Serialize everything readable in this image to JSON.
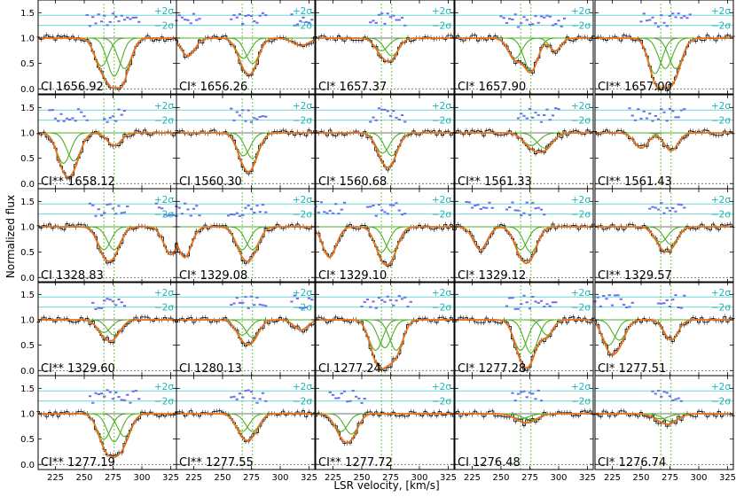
{
  "chart_data": {
    "type": "line",
    "xlabel": "LSR velocity, [km/s]",
    "ylabel": "Normalized flux",
    "xlim": [
      210,
      330
    ],
    "ylim": [
      -0.1,
      1.75
    ],
    "xticks": [
      225,
      250,
      275,
      300,
      325
    ],
    "xtick_labels": [
      "225",
      "250",
      "275",
      "300",
      "325"
    ],
    "yticks": [
      0.0,
      0.5,
      1.0,
      1.5
    ],
    "ytick_labels": [
      "0.0",
      "0.5",
      "1.0",
      "1.5"
    ],
    "residual_band_labels": [
      "+2σ",
      "−2σ"
    ],
    "component_velocities": [
      267,
      276
    ],
    "grid_rows": 5,
    "grid_cols": 5,
    "series_legend": "none",
    "colors": {
      "data": "#000000",
      "total_fit": "#e8701a",
      "components": "#4bb023",
      "residuals": "#6a6ef0",
      "sigma_band": "#6fd8d8",
      "component_marker": "#4bb023",
      "continuum": "#444444"
    },
    "panels": [
      {
        "label": "CI 1656.92",
        "lines": [
          {
            "v": 265,
            "d": 0.55,
            "w": 6
          },
          {
            "v": 276,
            "d": 0.75,
            "w": 6
          },
          {
            "v": 285,
            "d": 0.6,
            "w": 6
          }
        ]
      },
      {
        "label": "CI* 1656.26",
        "lines": [
          {
            "v": 220,
            "d": 0.35,
            "w": 6
          },
          {
            "v": 268,
            "d": 0.4,
            "w": 6
          },
          {
            "v": 276,
            "d": 0.5,
            "w": 6
          },
          {
            "v": 318,
            "d": 0.15,
            "w": 7
          }
        ]
      },
      {
        "label": "CI* 1657.37",
        "lines": [
          {
            "v": 267,
            "d": 0.25,
            "w": 6
          },
          {
            "v": 276,
            "d": 0.35,
            "w": 6
          }
        ]
      },
      {
        "label": "CI* 1657.90",
        "lines": [
          {
            "v": 262,
            "d": 0.4,
            "w": 6
          },
          {
            "v": 276,
            "d": 0.65,
            "w": 6
          },
          {
            "v": 297,
            "d": 0.25,
            "w": 5
          }
        ]
      },
      {
        "label": "CI** 1657.00",
        "lines": [
          {
            "v": 262,
            "d": 0.7,
            "w": 6
          },
          {
            "v": 271,
            "d": 0.6,
            "w": 6
          },
          {
            "v": 280,
            "d": 0.6,
            "w": 6
          }
        ]
      },
      {
        "label": "CI** 1658.12",
        "lines": [
          {
            "v": 232,
            "d": 0.6,
            "w": 6
          },
          {
            "v": 241,
            "d": 0.55,
            "w": 6
          },
          {
            "v": 276,
            "d": 0.25,
            "w": 6
          }
        ]
      },
      {
        "label": "CI 1560.30",
        "lines": [
          {
            "v": 268,
            "d": 0.45,
            "w": 6
          },
          {
            "v": 276,
            "d": 0.5,
            "w": 6
          }
        ]
      },
      {
        "label": "CI* 1560.68",
        "lines": [
          {
            "v": 268,
            "d": 0.4,
            "w": 6
          },
          {
            "v": 276,
            "d": 0.45,
            "w": 6
          }
        ]
      },
      {
        "label": "CI** 1561.33",
        "lines": [
          {
            "v": 276,
            "d": 0.25,
            "w": 7
          },
          {
            "v": 288,
            "d": 0.3,
            "w": 7
          }
        ]
      },
      {
        "label": "CI** 1561.43",
        "lines": [
          {
            "v": 250,
            "d": 0.3,
            "w": 6
          },
          {
            "v": 276,
            "d": 0.35,
            "w": 6
          }
        ]
      },
      {
        "label": "CI 1328.83",
        "lines": [
          {
            "v": 267,
            "d": 0.45,
            "w": 6
          },
          {
            "v": 276,
            "d": 0.45,
            "w": 6
          },
          {
            "v": 325,
            "d": 0.55,
            "w": 6
          }
        ]
      },
      {
        "label": "CI* 1329.08",
        "lines": [
          {
            "v": 217,
            "d": 0.6,
            "w": 6
          },
          {
            "v": 267,
            "d": 0.45,
            "w": 6
          },
          {
            "v": 276,
            "d": 0.45,
            "w": 6
          }
        ]
      },
      {
        "label": "CI* 1329.10",
        "lines": [
          {
            "v": 222,
            "d": 0.6,
            "w": 6
          },
          {
            "v": 267,
            "d": 0.5,
            "w": 6
          },
          {
            "v": 276,
            "d": 0.5,
            "w": 6
          }
        ]
      },
      {
        "label": "CI* 1329.12",
        "lines": [
          {
            "v": 232,
            "d": 0.45,
            "w": 6
          },
          {
            "v": 267,
            "d": 0.45,
            "w": 6
          },
          {
            "v": 276,
            "d": 0.5,
            "w": 6
          }
        ]
      },
      {
        "label": "CI** 1329.57",
        "lines": [
          {
            "v": 267,
            "d": 0.3,
            "w": 6
          },
          {
            "v": 276,
            "d": 0.35,
            "w": 6
          }
        ]
      },
      {
        "label": "CI** 1329.60",
        "lines": [
          {
            "v": 267,
            "d": 0.25,
            "w": 6
          },
          {
            "v": 276,
            "d": 0.3,
            "w": 6
          }
        ]
      },
      {
        "label": "CI 1280.13",
        "lines": [
          {
            "v": 267,
            "d": 0.3,
            "w": 6
          },
          {
            "v": 276,
            "d": 0.35,
            "w": 6
          },
          {
            "v": 318,
            "d": 0.2,
            "w": 6
          }
        ]
      },
      {
        "label": "CI 1277.24",
        "lines": [
          {
            "v": 262,
            "d": 0.6,
            "w": 6
          },
          {
            "v": 270,
            "d": 0.55,
            "w": 6
          },
          {
            "v": 280,
            "d": 0.6,
            "w": 6
          }
        ]
      },
      {
        "label": "CI* 1277.28",
        "lines": [
          {
            "v": 267,
            "d": 0.6,
            "w": 6
          },
          {
            "v": 276,
            "d": 0.65,
            "w": 6
          },
          {
            "v": 290,
            "d": 0.3,
            "w": 5
          }
        ]
      },
      {
        "label": "CI* 1277.51",
        "lines": [
          {
            "v": 222,
            "d": 0.5,
            "w": 6
          },
          {
            "v": 231,
            "d": 0.4,
            "w": 6
          },
          {
            "v": 276,
            "d": 0.4,
            "w": 6
          }
        ]
      },
      {
        "label": "CI** 1277.19",
        "lines": [
          {
            "v": 267,
            "d": 0.5,
            "w": 6
          },
          {
            "v": 276,
            "d": 0.55,
            "w": 6
          },
          {
            "v": 285,
            "d": 0.45,
            "w": 6
          }
        ]
      },
      {
        "label": "CI** 1277.55",
        "lines": [
          {
            "v": 267,
            "d": 0.35,
            "w": 6
          },
          {
            "v": 276,
            "d": 0.35,
            "w": 6
          }
        ]
      },
      {
        "label": "CI** 1277.72",
        "lines": [
          {
            "v": 232,
            "d": 0.35,
            "w": 6
          },
          {
            "v": 241,
            "d": 0.4,
            "w": 6
          }
        ]
      },
      {
        "label": "CI 1276.48",
        "lines": [
          {
            "v": 267,
            "d": 0.1,
            "w": 7
          },
          {
            "v": 276,
            "d": 0.12,
            "w": 7
          }
        ]
      },
      {
        "label": "CI* 1276.74",
        "lines": [
          {
            "v": 267,
            "d": 0.1,
            "w": 7
          },
          {
            "v": 276,
            "d": 0.15,
            "w": 7
          }
        ]
      }
    ]
  }
}
